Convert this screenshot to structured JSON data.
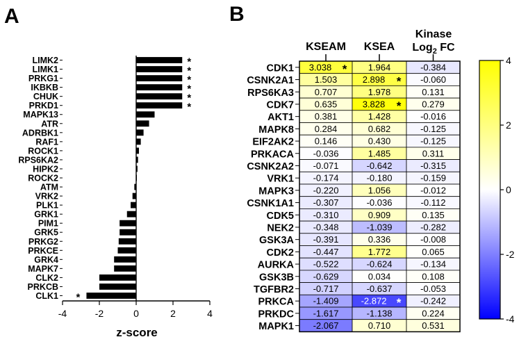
{
  "panel_a": {
    "label": "A",
    "chart_data": {
      "type": "bar",
      "orientation": "horizontal",
      "xlabel": "z-score",
      "xlim": [
        -4,
        4
      ],
      "xticks": [
        "-4",
        "-2",
        "0",
        "2",
        "4"
      ],
      "significance_marker": "*",
      "categories": [
        "LIMK2",
        "LIMK1",
        "PRKG1",
        "IKBKB",
        "CHUK",
        "PRKD1",
        "MAPK13",
        "ATR",
        "ADRBK1",
        "RAF1",
        "ROCK1",
        "RPS6KA2",
        "HIPK2",
        "ROCK2",
        "ATM",
        "VRK2",
        "PLK1",
        "GRK1",
        "PIM1",
        "GRK5",
        "PRKG2",
        "PRKCE",
        "GRK4",
        "MAPK7",
        "CLK2",
        "PRKCB",
        "CLK1"
      ],
      "values": [
        2.5,
        2.5,
        2.5,
        2.5,
        2.5,
        2.5,
        1.0,
        0.7,
        0.4,
        0.25,
        0.15,
        0.1,
        0.07,
        0.03,
        -0.1,
        -0.2,
        -0.3,
        -0.5,
        -0.9,
        -0.9,
        -0.95,
        -1.0,
        -1.2,
        -1.2,
        -2.0,
        -2.0,
        -2.7
      ],
      "significant": [
        true,
        true,
        true,
        true,
        true,
        true,
        false,
        false,
        false,
        false,
        false,
        false,
        false,
        false,
        false,
        false,
        false,
        false,
        false,
        false,
        false,
        false,
        false,
        false,
        false,
        false,
        true
      ]
    }
  },
  "panel_b": {
    "label": "B",
    "chart_data": {
      "type": "heatmap",
      "columns": [
        "KSEAM",
        "KSEA",
        "Kinase"
      ],
      "column_fc_prefix": "Log",
      "column_fc_sub": "2",
      "column_fc_suffix": " FC",
      "rows": [
        "CDK1",
        "CSNK2A1",
        "RPS6KA3",
        "CDK7",
        "AKT1",
        "MAPK8",
        "EIF2AK2",
        "PRKACA",
        "CSNK2A2",
        "VRK1",
        "MAPK3",
        "CSNK1A1",
        "CDK5",
        "NEK2",
        "GSK3A",
        "CDK2",
        "AURKA",
        "GSK3B",
        "TGFBR2",
        "PRKCA",
        "PRKDC",
        "MAPK1"
      ],
      "values": [
        [
          "3.038",
          "1.964",
          "-0.384"
        ],
        [
          "1.503",
          "2.898",
          "-0.060"
        ],
        [
          "0.707",
          "1.978",
          "0.131"
        ],
        [
          "0.635",
          "3.828",
          "0.279"
        ],
        [
          "0.381",
          "1.428",
          "-0.016"
        ],
        [
          "0.284",
          "0.682",
          "-0.125"
        ],
        [
          "0.146",
          "0.430",
          "-0.125"
        ],
        [
          "-0.036",
          "1.485",
          "0.311"
        ],
        [
          "-0.071",
          "-0.642",
          "-0.315"
        ],
        [
          "-0.174",
          "-0.180",
          "-0.159"
        ],
        [
          "-0.220",
          "1.056",
          "-0.012"
        ],
        [
          "-0.307",
          "-0.036",
          "-0.112"
        ],
        [
          "-0.310",
          "0.909",
          "0.135"
        ],
        [
          "-0.348",
          "-1.039",
          "-0.282"
        ],
        [
          "-0.391",
          "0.336",
          "-0.008"
        ],
        [
          "-0.447",
          "1.772",
          "0.065"
        ],
        [
          "-0.522",
          "-0.624",
          "-0.134"
        ],
        [
          "-0.629",
          "0.034",
          "0.108"
        ],
        [
          "-0.717",
          "-0.637",
          "-0.053"
        ],
        [
          "-1.409",
          "-2.872",
          "-0.242"
        ],
        [
          "-1.617",
          "-1.138",
          "0.224"
        ],
        [
          "-2.067",
          "0.710",
          "0.531"
        ]
      ],
      "significant_cells": [
        [
          0,
          0
        ],
        [
          1,
          1
        ],
        [
          3,
          1
        ],
        [
          19,
          1
        ]
      ],
      "significance_marker": "*",
      "color_range": [
        -4,
        4
      ],
      "colorbar_ticks": [
        "4",
        "2",
        "0",
        "-2",
        "-4"
      ],
      "colors": {
        "low": "#0000ff",
        "mid": "#ffffff",
        "high": "#ffff00"
      }
    }
  }
}
